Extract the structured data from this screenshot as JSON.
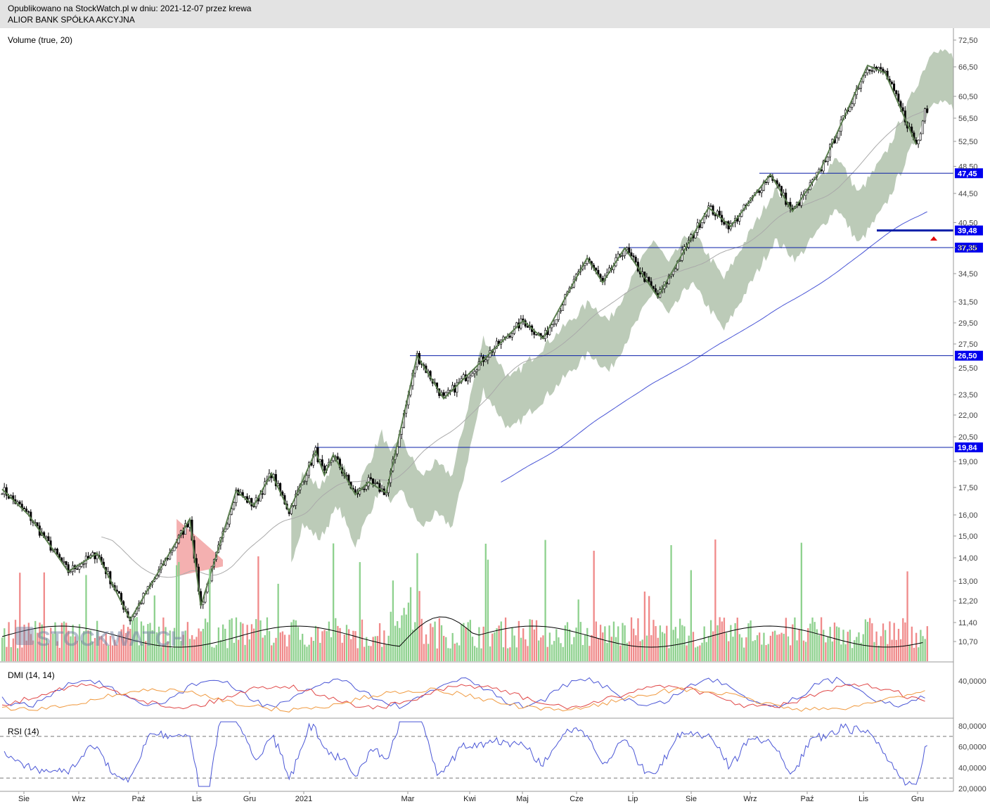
{
  "header": {
    "published": "Opublikowano na StockWatch.pl w dniu: 2021-12-07 przez krewa",
    "instrument": "ALIOR BANK SPÓŁKA AKCYJNA"
  },
  "panels": {
    "volume_title": "Volume (true, 20)",
    "dmi_title": "DMI (14, 14)",
    "rsi_title": "RSI (14)"
  },
  "watermark": "STOCKWATCH",
  "colors": {
    "header_bg": "#e3e3e3",
    "candle_up": "#ffffff",
    "candle_down": "#000000",
    "zigzag": "#5a7d4e",
    "cloud_bull": "#bccbb8",
    "cloud_bear": "#f4b0b0",
    "ma_fast": "#aaaaaa",
    "ma_slow": "#4a56d6",
    "level_line": "#0a1fa8",
    "level_label_bg": "#0000ee",
    "vol_up": "#8ed18e",
    "vol_down": "#f08a8a",
    "dmi_plus": "#4a56d6",
    "dmi_minus": "#e04848",
    "adx": "#f09a40",
    "rsi": "#4a56d6"
  },
  "chart_data": {
    "type": "candlestick",
    "price_axis": {
      "ticks": [
        "72,50",
        "66,50",
        "60,50",
        "56,50",
        "52,50",
        "48,50",
        "44,50",
        "40,50",
        "37,35",
        "34,50",
        "31,50",
        "29,50",
        "27,50",
        "25,50",
        "23,50",
        "22,00",
        "20,50",
        "19,00",
        "17,50",
        "16,00",
        "15,00",
        "14,00",
        "13,00",
        "12,20",
        "11,40",
        "10,70"
      ]
    },
    "x_axis": {
      "labels": [
        "Sie",
        "Wrz",
        "Paź",
        "Lis",
        "Gru",
        "2021",
        "Mar",
        "Kwi",
        "Maj",
        "Cze",
        "Lip",
        "Sie",
        "Wrz",
        "Paź",
        "Lis",
        "Gru"
      ]
    },
    "levels": [
      {
        "label": "47,45",
        "value": 47.45
      },
      {
        "label": "39,48",
        "value": 39.48
      },
      {
        "label": "37,35",
        "value": 37.35
      },
      {
        "label": "26,50",
        "value": 26.5
      },
      {
        "label": "19,84",
        "value": 19.84
      }
    ],
    "zigzag": [
      [
        0,
        17.4
      ],
      [
        12,
        16.0
      ],
      [
        30,
        13.4
      ],
      [
        43,
        14.2
      ],
      [
        58,
        11.5
      ],
      [
        85,
        15.8
      ],
      [
        90,
        12.0
      ],
      [
        106,
        17.3
      ],
      [
        114,
        16.5
      ],
      [
        122,
        18.3
      ],
      [
        130,
        16.2
      ],
      [
        142,
        19.6
      ],
      [
        146,
        18.2
      ],
      [
        150,
        19.4
      ],
      [
        160,
        17.1
      ],
      [
        166,
        17.8
      ],
      [
        174,
        17.2
      ],
      [
        188,
        26.5
      ],
      [
        200,
        23.2
      ],
      [
        236,
        29.7
      ],
      [
        245,
        28.0
      ],
      [
        265,
        36.2
      ],
      [
        272,
        33.5
      ],
      [
        282,
        37.3
      ],
      [
        297,
        32.0
      ],
      [
        320,
        42.5
      ],
      [
        330,
        40.0
      ],
      [
        348,
        47.3
      ],
      [
        358,
        42.0
      ],
      [
        370,
        47.5
      ],
      [
        392,
        66.8
      ],
      [
        400,
        65.2
      ],
      [
        414,
        52.0
      ]
    ],
    "dmi_axis": {
      "ticks": [
        "40,0000"
      ]
    },
    "rsi_axis": {
      "ticks": [
        "80,0000",
        "60,0000",
        "40,0000",
        "20,0000"
      ],
      "overbought": 70,
      "oversold": 30
    }
  }
}
